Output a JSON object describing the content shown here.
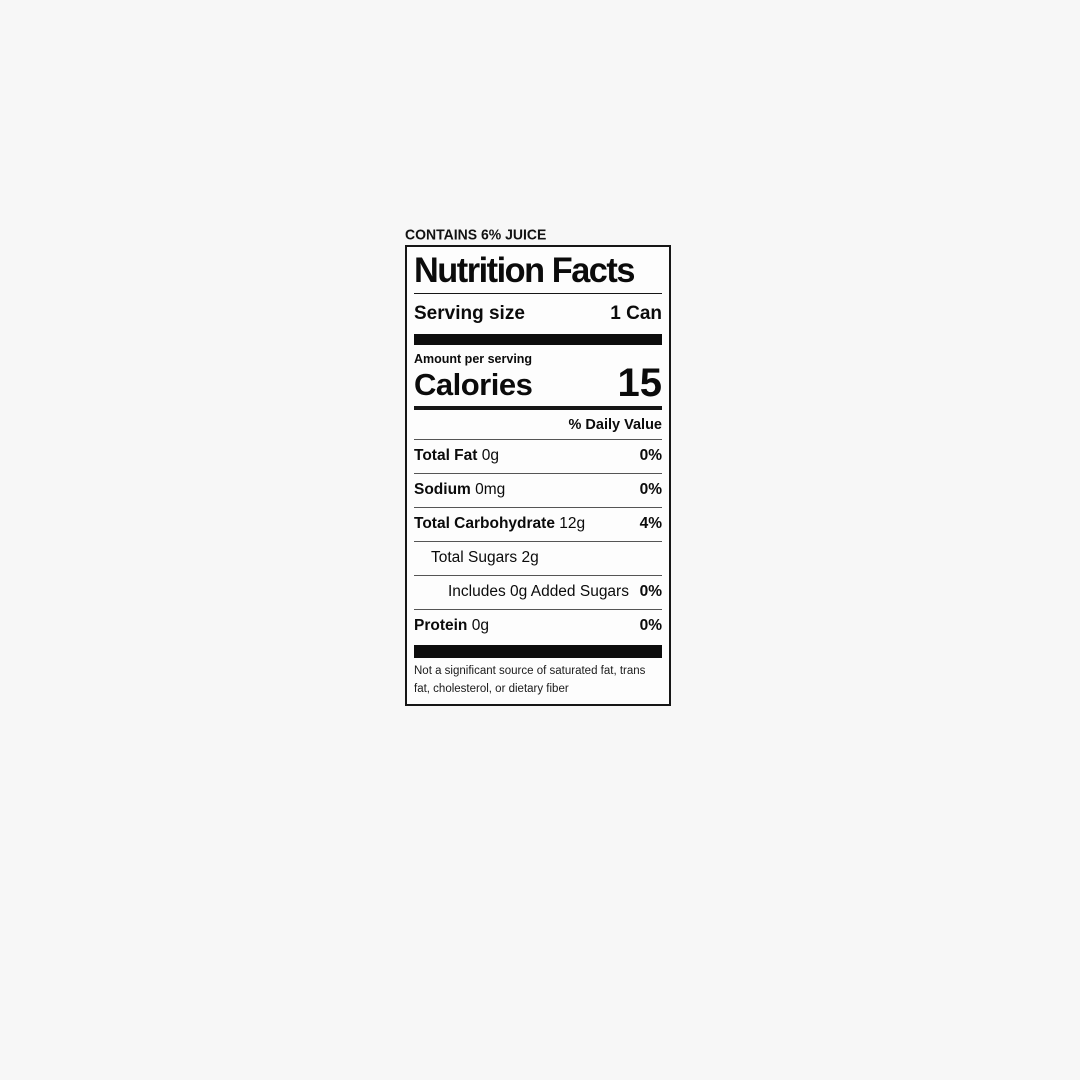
{
  "page": {
    "background_color": "#f7f7f7",
    "panel_background": "#fdfdfd",
    "ink_color": "#0b0b0b"
  },
  "label": {
    "contains_note": "CONTAINS 6% JUICE",
    "title": "Nutrition Facts",
    "serving": {
      "label": "Serving size",
      "value": "1 Can"
    },
    "amount_per_serving": "Amount per serving",
    "calories": {
      "label": "Calories",
      "value": "15"
    },
    "daily_value_header": "% Daily Value",
    "rows": [
      {
        "name": "Total Fat",
        "name_bold": true,
        "amount": "0g",
        "dv": "0%",
        "indent": 0
      },
      {
        "name": "Sodium",
        "name_bold": true,
        "amount": "0mg",
        "dv": "0%",
        "indent": 0
      },
      {
        "name": "Total Carbohydrate",
        "name_bold": true,
        "amount": "12g",
        "dv": "4%",
        "indent": 0
      },
      {
        "name": "Total Sugars",
        "name_bold": false,
        "amount": "2g",
        "dv": "",
        "indent": 1
      },
      {
        "name": "Includes 0g Added Sugars",
        "name_bold": false,
        "amount": "",
        "dv": "0%",
        "indent": 2
      },
      {
        "name": "Protein",
        "name_bold": true,
        "amount": "0g",
        "dv": "0%",
        "indent": 0
      }
    ],
    "footnote": "Not a significant source of saturated fat, trans fat, cholesterol, or dietary fiber"
  }
}
